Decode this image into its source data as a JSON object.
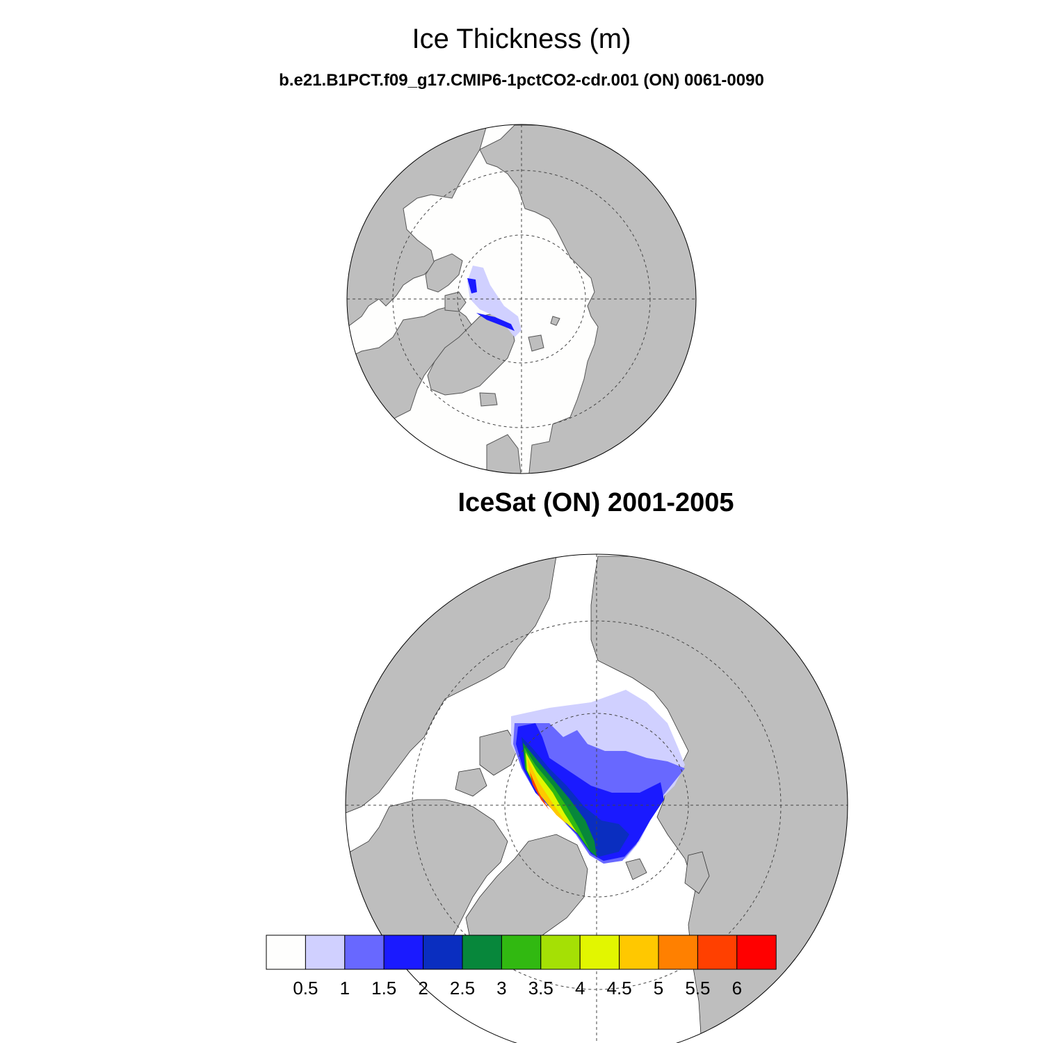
{
  "figure": {
    "title": "Ice Thickness (m)",
    "model_panel_title": "b.e21.B1PCT.f09_g17.CMIP6-1pctCO2-cdr.001 (ON) 0061-0090",
    "obs_panel_title": "IceSat (ON) 2001-2005"
  },
  "colors": {
    "land": "#bebebe",
    "ocean": "#fefefd",
    "levels": [
      "#fefefd",
      "#d0d0ff",
      "#6868ff",
      "#1a1aff",
      "#0a2ec0",
      "#07873b",
      "#31b911",
      "#a5e005",
      "#e2f600",
      "#ffc800",
      "#ff8000",
      "#ff4000",
      "#ff0000"
    ]
  },
  "colorbar": {
    "labels": [
      "0.5",
      "1",
      "1.5",
      "2",
      "2.5",
      "3",
      "3.5",
      "4",
      "4.5",
      "5",
      "5.5",
      "6"
    ]
  },
  "chart_data": {
    "type": "heatmap",
    "variable": "Ice Thickness (m)",
    "projection": "north polar stereographic",
    "panels": [
      {
        "title": "b.e21.B1PCT.f09_g17.CMIP6-1pctCO2-cdr.001 (ON) 0061-0090",
        "max_thickness_level": "2.5"
      },
      {
        "title": "IceSat (ON) 2001-2005",
        "max_thickness_level": "6"
      }
    ],
    "levels": [
      0.5,
      1,
      1.5,
      2,
      2.5,
      3,
      3.5,
      4,
      4.5,
      5,
      5.5,
      6
    ]
  }
}
